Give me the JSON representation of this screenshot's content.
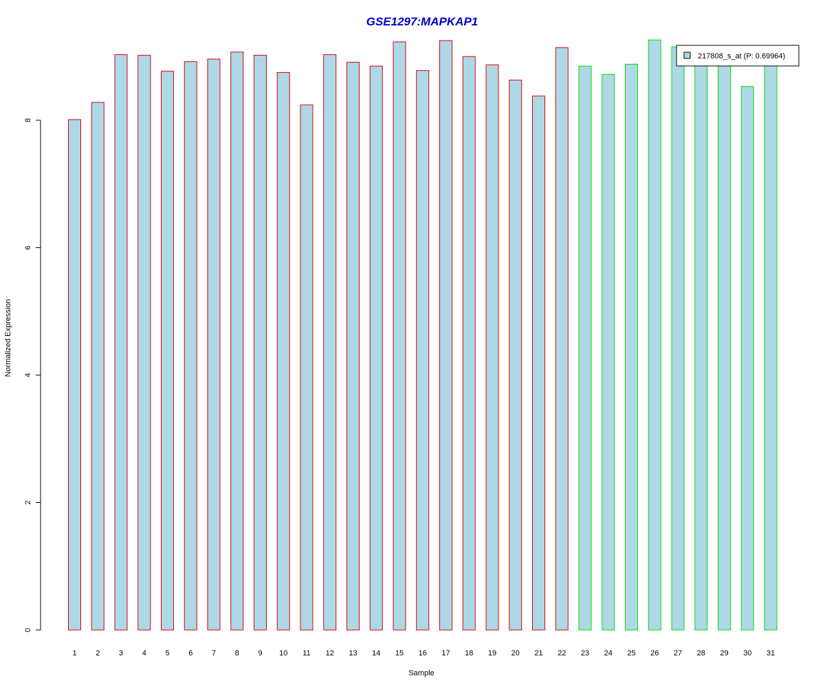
{
  "chart_data": {
    "type": "bar",
    "title": "GSE1297:MAPKAP1",
    "xlabel": "Sample",
    "ylabel": "Normalized Expression",
    "ylim": [
      0,
      9.25
    ],
    "yticks": [
      0,
      2,
      4,
      6,
      8
    ],
    "grid": false,
    "legend_position": "top-right",
    "categories": [
      "1",
      "2",
      "3",
      "4",
      "5",
      "6",
      "7",
      "8",
      "9",
      "10",
      "11",
      "12",
      "13",
      "14",
      "15",
      "16",
      "17",
      "18",
      "19",
      "20",
      "21",
      "22",
      "23",
      "24",
      "25",
      "26",
      "27",
      "28",
      "29",
      "30",
      "31"
    ],
    "series": [
      {
        "name": "217808_s_at (P: 0.69964)",
        "values": [
          8.01,
          8.28,
          9.03,
          9.02,
          8.77,
          8.92,
          8.96,
          9.07,
          9.02,
          8.75,
          8.24,
          9.03,
          8.91,
          8.85,
          9.23,
          8.78,
          9.25,
          9.0,
          8.87,
          8.63,
          8.38,
          9.14,
          8.85,
          8.72,
          8.88,
          9.26,
          9.15,
          9.0,
          8.95,
          8.53,
          8.98
        ]
      }
    ],
    "groups": [
      {
        "samples": [
          1,
          22
        ],
        "border_color": "#dd0000"
      },
      {
        "samples": [
          23,
          31
        ],
        "border_color": "#00dd00"
      }
    ],
    "colors": {
      "bar_fill": "#add8e6",
      "title": "#0000cc",
      "legend_swatch": "#add8e6"
    }
  }
}
